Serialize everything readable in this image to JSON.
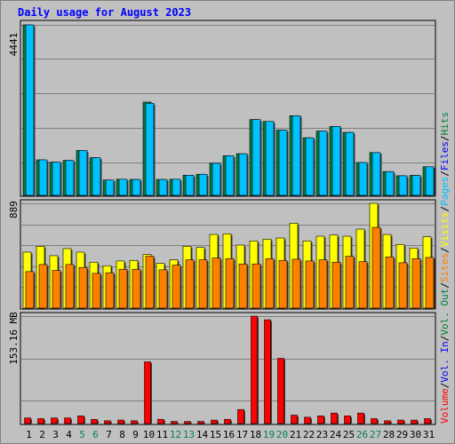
{
  "chart_data": {
    "type": "bar",
    "title": "Daily usage for August 2023",
    "categories": [
      "1",
      "2",
      "3",
      "4",
      "5",
      "6",
      "7",
      "8",
      "9",
      "10",
      "11",
      "12",
      "13",
      "14",
      "15",
      "16",
      "17",
      "18",
      "19",
      "20",
      "21",
      "22",
      "23",
      "24",
      "25",
      "26",
      "27",
      "28",
      "29",
      "30",
      "31"
    ],
    "weekend_days": [
      "5",
      "6",
      "12",
      "13",
      "19",
      "20",
      "26",
      "27"
    ],
    "panels": [
      {
        "id": "top",
        "max_label": "4441",
        "ymax": 4441,
        "series": [
          {
            "name": "Hits",
            "color": "#008040",
            "values": [
              4441,
              925,
              865,
              910,
              1170,
              980,
              400,
              420,
              415,
              2430,
              415,
              420,
              525,
              550,
              835,
              1030,
              1085,
              1975,
              1925,
              1700,
              2075,
              1500,
              1675,
              1795,
              1640,
              855,
              1115,
              620,
              510,
              520,
              745
            ]
          },
          {
            "name": "Files",
            "color": "#00c0ff",
            "values": [
              4441,
              925,
              865,
              910,
              1170,
              980,
              400,
              420,
              415,
              2400,
              415,
              420,
              525,
              550,
              835,
              1030,
              1085,
              1975,
              1925,
              1700,
              2075,
              1500,
              1675,
              1795,
              1640,
              855,
              1115,
              620,
              510,
              520,
              745
            ]
          }
        ]
      },
      {
        "id": "middle",
        "max_label": "889",
        "ymax": 889,
        "series": [
          {
            "name": "Visits",
            "color": "#ffff00",
            "values": [
              475,
              525,
              445,
              505,
              475,
              390,
              360,
              400,
              405,
              455,
              380,
              410,
              525,
              515,
              625,
              630,
              535,
              570,
              585,
              595,
              720,
              570,
              610,
              620,
              610,
              670,
              889,
              625,
              540,
              510,
              605
            ]
          },
          {
            "name": "Sites",
            "color": "#ff8000",
            "values": [
              310,
              370,
              320,
              370,
              345,
              295,
              300,
              330,
              330,
              440,
              325,
              365,
              410,
              410,
              425,
              420,
              375,
              375,
              420,
              405,
              415,
              400,
              410,
              390,
              440,
              395,
              685,
              435,
              385,
              420,
              430
            ]
          }
        ]
      },
      {
        "id": "bottom",
        "max_label": "153.16 MB",
        "ymax": 153.16,
        "series": [
          {
            "name": "Volume",
            "color": "#ff0000",
            "values": [
              8,
              7,
              8,
              8,
              11,
              6,
              4,
              5,
              4,
              88,
              6,
              3,
              3,
              3,
              5,
              6,
              20,
              153.16,
              148,
              93,
              12,
              9,
              11,
              15,
              11,
              15,
              7,
              4,
              5,
              5,
              7
            ]
          }
        ]
      }
    ],
    "legend_right": [
      {
        "text": "Hits",
        "color": "#008040"
      },
      {
        "text": "/",
        "color": "#000000"
      },
      {
        "text": "Files",
        "color": "#0000ff"
      },
      {
        "text": "/",
        "color": "#000000"
      },
      {
        "text": "Pages",
        "color": "#00c0ff"
      },
      {
        "text": "/",
        "color": "#000000"
      },
      {
        "text": "Visits",
        "color": "#ffff00"
      },
      {
        "text": "/",
        "color": "#000000"
      },
      {
        "text": "Sites",
        "color": "#ff8000"
      },
      {
        "text": "/",
        "color": "#000000"
      },
      {
        "text": "Vol. Out",
        "color": "#008040"
      },
      {
        "text": "/",
        "color": "#000000"
      },
      {
        "text": "Vol. In",
        "color": "#0000ff"
      },
      {
        "text": "/",
        "color": "#000000"
      },
      {
        "text": "Volume",
        "color": "#ff0000"
      }
    ],
    "colors": {
      "background": "#c0c0c0",
      "title": "#0000ff",
      "weekday_label": "#000000",
      "weekend_label": "#00805f",
      "grid": "#808080"
    }
  }
}
